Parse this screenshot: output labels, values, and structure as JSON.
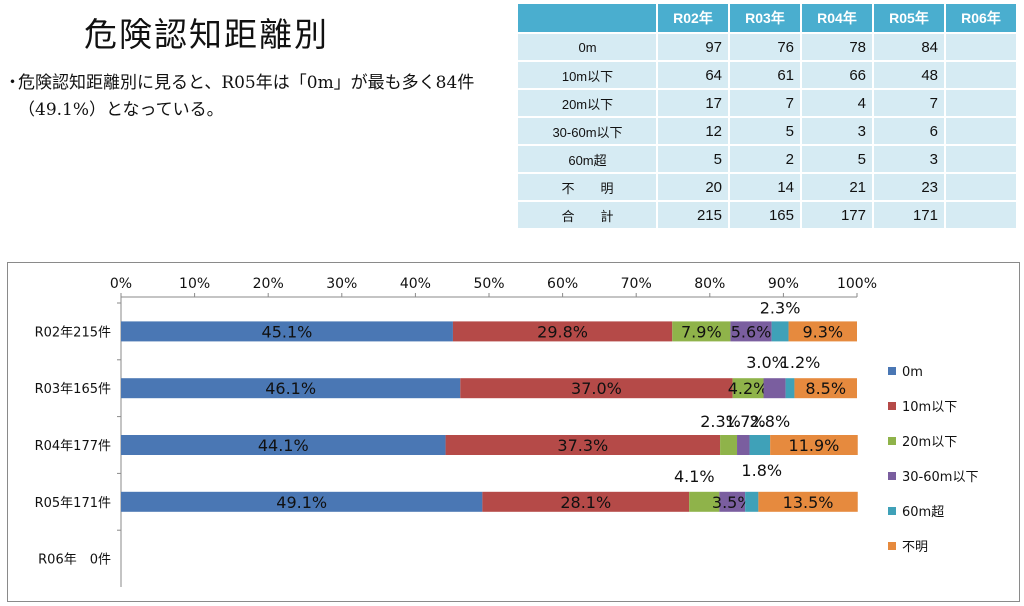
{
  "page": {
    "title": "危険認知距離別",
    "bullet": "・",
    "description": "危険認知距離別に見ると、R05年は「0m」が最も多く84件（49.1%）となっている。"
  },
  "table": {
    "corner": "",
    "columns": [
      "R02年",
      "R03年",
      "R04年",
      "R05年",
      "R06年"
    ],
    "rows": [
      {
        "label": "0m",
        "values": [
          "97",
          "76",
          "78",
          "84",
          ""
        ]
      },
      {
        "label": "10m以下",
        "values": [
          "64",
          "61",
          "66",
          "48",
          ""
        ]
      },
      {
        "label": "20m以下",
        "values": [
          "17",
          "7",
          "4",
          "7",
          ""
        ]
      },
      {
        "label": "30-60m以下",
        "values": [
          "12",
          "5",
          "3",
          "6",
          ""
        ]
      },
      {
        "label": "60m超",
        "values": [
          "5",
          "2",
          "5",
          "3",
          ""
        ]
      },
      {
        "label": "不　　明",
        "values": [
          "20",
          "14",
          "21",
          "23",
          ""
        ]
      },
      {
        "label": "合　　計",
        "values": [
          "215",
          "165",
          "177",
          "171",
          ""
        ]
      }
    ]
  },
  "chart_data": {
    "type": "bar",
    "orientation": "horizontal",
    "stacked": "percent",
    "categories": [
      "R02年215件",
      "R03年165件",
      "R04年177件",
      "R05年171件",
      "R06年　0件"
    ],
    "xlim": [
      0,
      100
    ],
    "xticks": [
      "0%",
      "10%",
      "20%",
      "30%",
      "40%",
      "50%",
      "60%",
      "70%",
      "80%",
      "90%",
      "100%"
    ],
    "legend_position": "right",
    "series": [
      {
        "name": "0m",
        "color": "#4a77b4",
        "values": [
          45.1,
          46.1,
          44.1,
          49.1,
          null
        ],
        "labels": [
          "45.1%",
          "46.1%",
          "44.1%",
          "49.1%",
          ""
        ]
      },
      {
        "name": "10m以下",
        "color": "#b54a48",
        "values": [
          29.8,
          37.0,
          37.3,
          28.1,
          null
        ],
        "labels": [
          "29.8%",
          "37.0%",
          "37.3%",
          "28.1%",
          ""
        ]
      },
      {
        "name": "20m以下",
        "color": "#8fb34a",
        "values": [
          7.9,
          4.2,
          2.3,
          4.1,
          null
        ],
        "labels": [
          "7.9%",
          "4.2%",
          "2.3%",
          "4.1%",
          ""
        ]
      },
      {
        "name": "30-60m以下",
        "color": "#7a5e9f",
        "values": [
          5.6,
          3.0,
          1.7,
          3.5,
          null
        ],
        "labels": [
          "5.6%",
          "3.0%",
          "1.7%",
          "3.5%",
          ""
        ]
      },
      {
        "name": "60m超",
        "color": "#3fa1b8",
        "values": [
          2.3,
          1.2,
          2.8,
          1.8,
          null
        ],
        "labels": [
          "2.3%",
          "1.2%",
          "2.8%",
          "1.8%",
          ""
        ]
      },
      {
        "name": "不明",
        "color": "#e68a3e",
        "values": [
          9.3,
          8.5,
          11.9,
          13.5,
          null
        ],
        "labels": [
          "9.3%",
          "8.5%",
          "11.9%",
          "13.5%",
          ""
        ]
      }
    ]
  }
}
